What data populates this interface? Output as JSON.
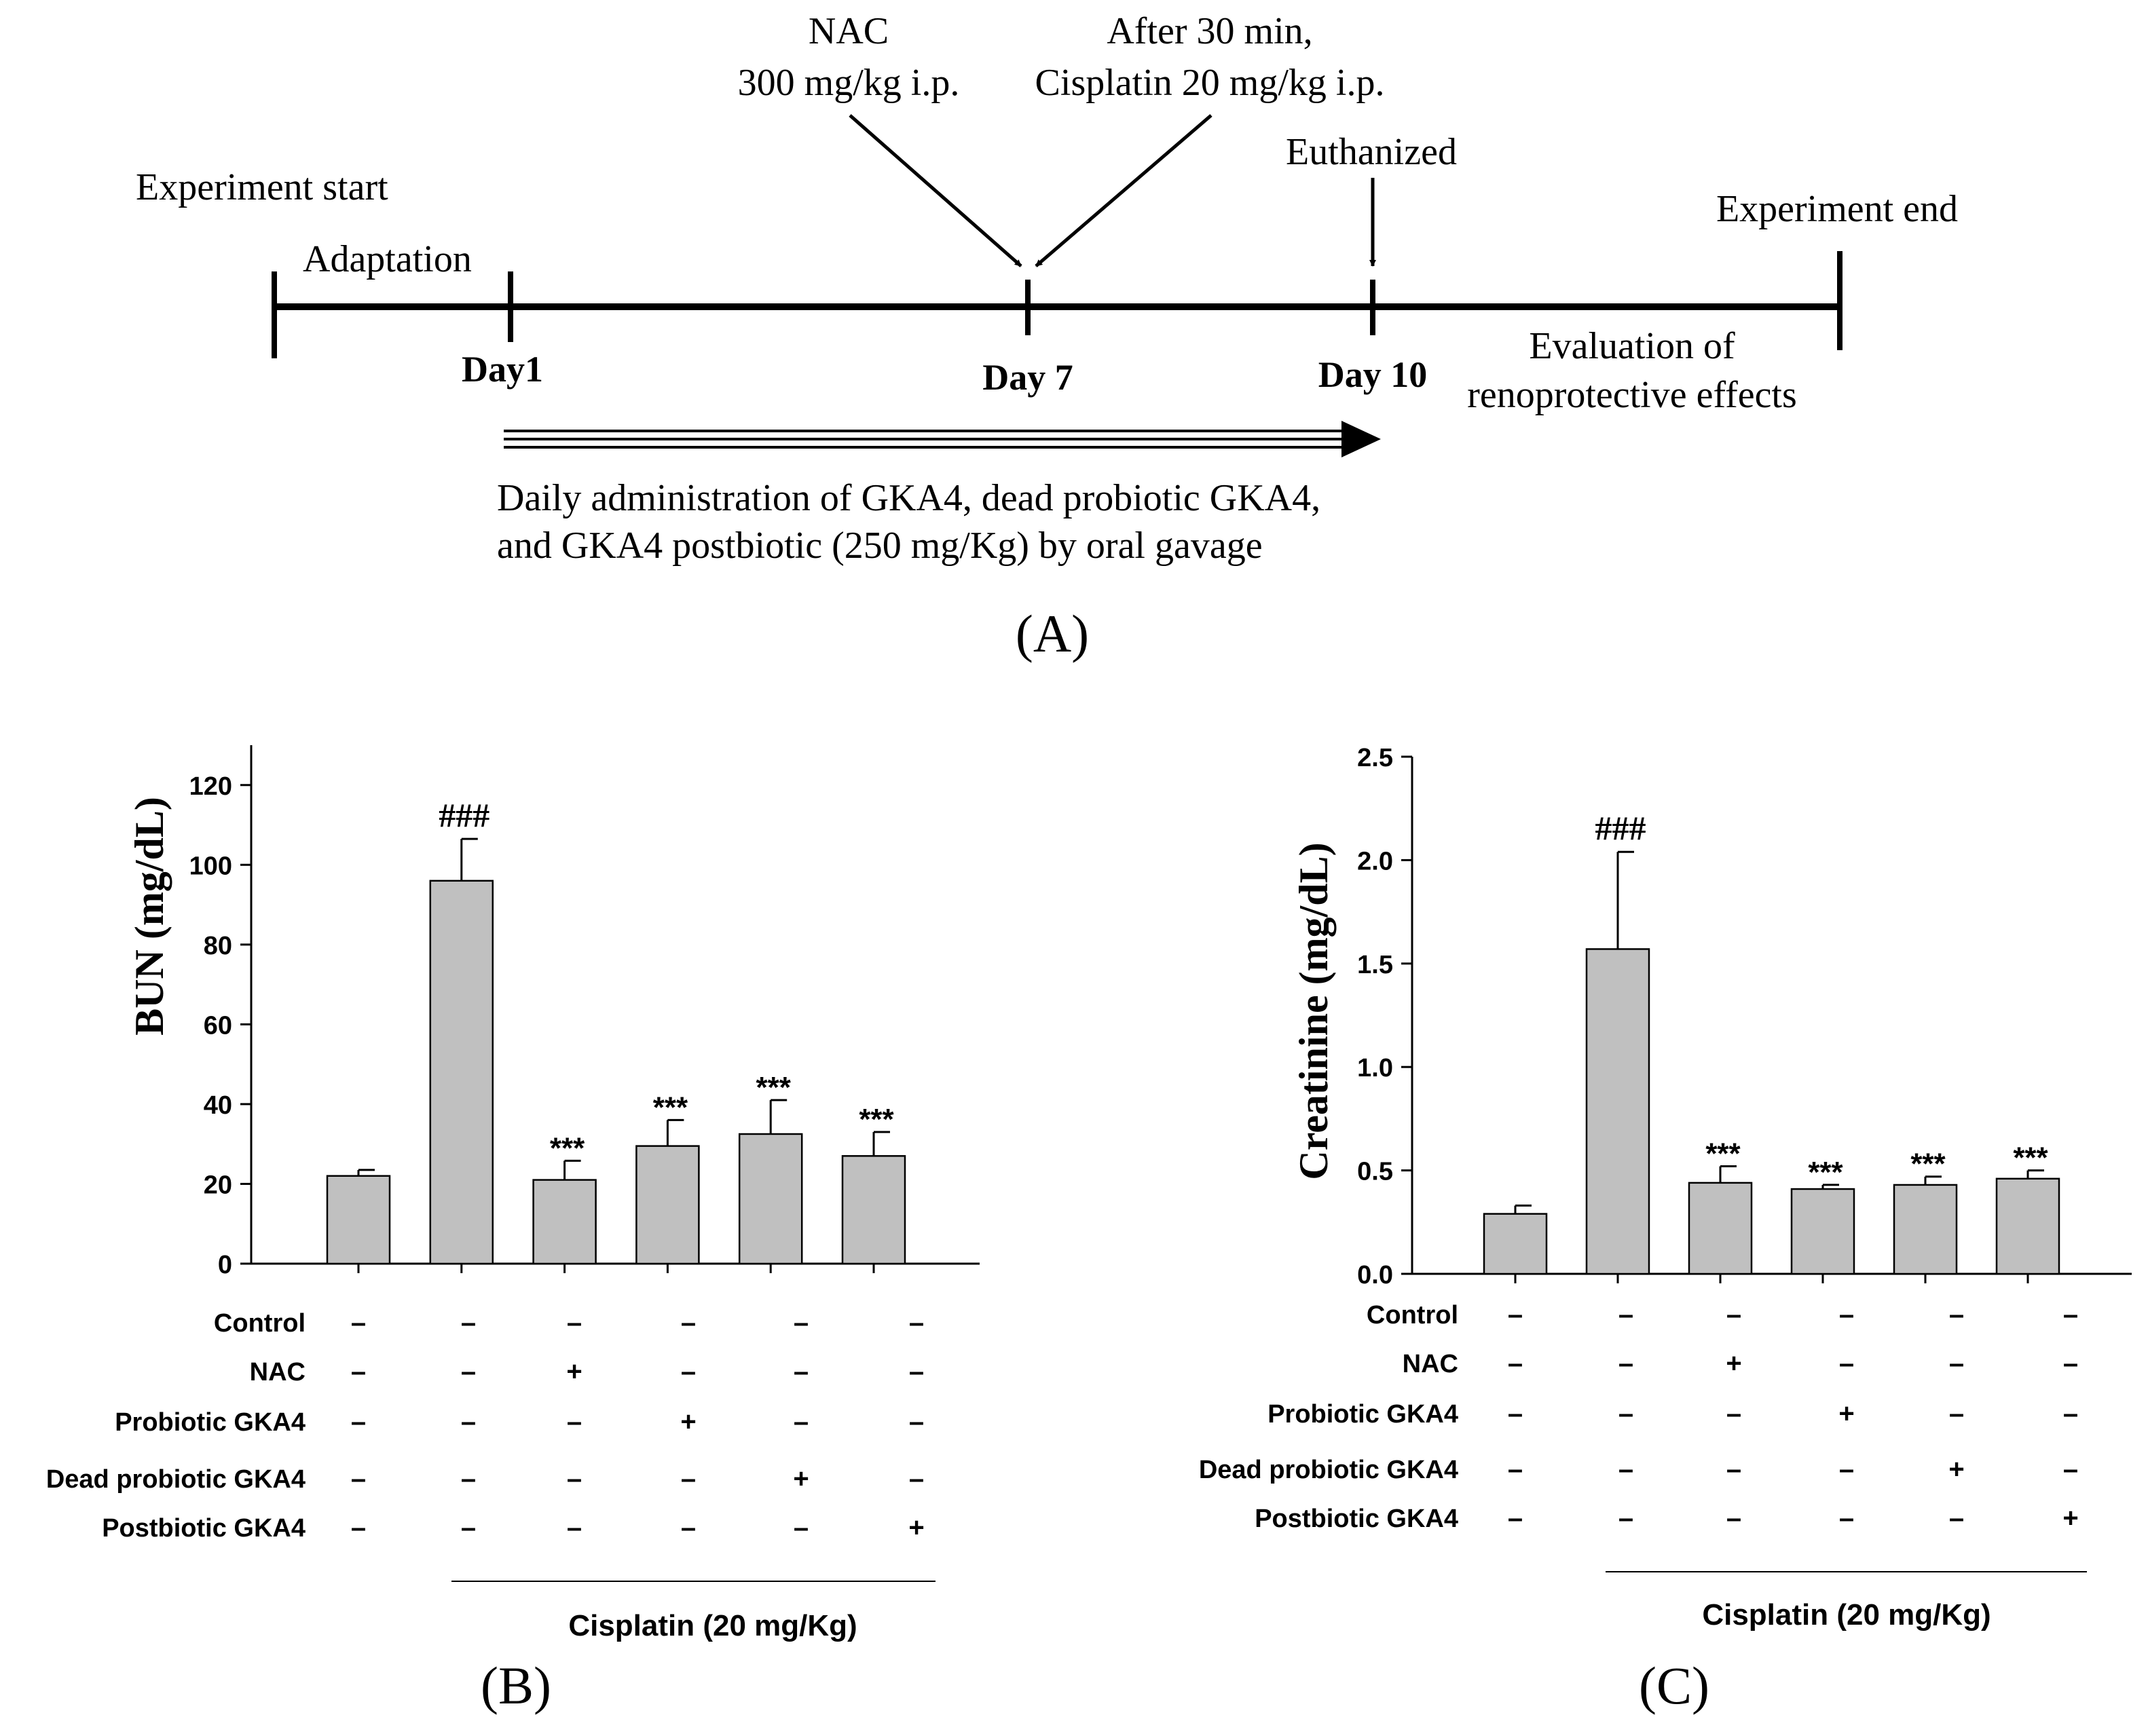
{
  "colors": {
    "ink": "#000000",
    "bar_fill": "#c0c0c0",
    "background": "#ffffff"
  },
  "timeline": {
    "experiment_start": "Experiment start",
    "adaptation": "Adaptation",
    "day1": "Day1",
    "day7": "Day 7",
    "day10": "Day 10",
    "nac_line1": "NAC",
    "nac_line2": "300 mg/kg i.p.",
    "cis_line1": "After 30 min,",
    "cis_line2": "Cisplatin 20 mg/kg i.p.",
    "euthanized": "Euthanized",
    "experiment_end": "Experiment end",
    "evaluation_line1": "Evaluation of",
    "evaluation_line2": "renoprotective effects",
    "daily_line1": "Daily administration of GKA4, dead probiotic GKA4,",
    "daily_line2": "and GKA4 postbiotic (250 mg/Kg) by oral gavage",
    "panel_label": "(A)"
  },
  "chart_data": [
    {
      "type": "bar",
      "panel_label": "(B)",
      "ylabel": "BUN (mg/dL)",
      "ylim": [
        0,
        130
      ],
      "yticks": [
        0,
        20,
        40,
        60,
        80,
        100,
        120
      ],
      "ytick_labels": [
        "0",
        "20",
        "40",
        "60",
        "80",
        "100",
        "120"
      ],
      "values": [
        22,
        96,
        21,
        29.5,
        32.5,
        27
      ],
      "errors": [
        1.5,
        10.5,
        4.8,
        6.5,
        8.5,
        6
      ],
      "annotations": [
        "",
        "###",
        "***",
        "***",
        "***",
        "***"
      ],
      "treatments": [
        {
          "label": "Control",
          "marks": [
            "–",
            "–",
            "–",
            "–",
            "–",
            "–"
          ]
        },
        {
          "label": "NAC",
          "marks": [
            "–",
            "–",
            "+",
            "–",
            "–",
            "–"
          ]
        },
        {
          "label": "Probiotic GKA4",
          "marks": [
            "–",
            "–",
            "–",
            "+",
            "–",
            "–"
          ]
        },
        {
          "label": "Dead probiotic GKA4",
          "marks": [
            "–",
            "–",
            "–",
            "–",
            "+",
            "–"
          ]
        },
        {
          "label": "Postbiotic GKA4",
          "marks": [
            "–",
            "–",
            "–",
            "–",
            "–",
            "+"
          ]
        }
      ],
      "group_label": "Cisplatin (20 mg/Kg)"
    },
    {
      "type": "bar",
      "panel_label": "(C)",
      "ylabel": "Creatinine (mg/dL)",
      "ylim": [
        0,
        2.5
      ],
      "yticks": [
        0,
        0.5,
        1.0,
        1.5,
        2.0,
        2.5
      ],
      "ytick_labels": [
        "0.0",
        "0.5",
        "1.0",
        "1.5",
        "2.0",
        "2.5"
      ],
      "values": [
        0.29,
        1.57,
        0.44,
        0.41,
        0.43,
        0.46
      ],
      "errors": [
        0.04,
        0.47,
        0.08,
        0.02,
        0.04,
        0.04
      ],
      "annotations": [
        "",
        "###",
        "***",
        "***",
        "***",
        "***"
      ],
      "treatments": [
        {
          "label": "Control",
          "marks": [
            "–",
            "–",
            "–",
            "–",
            "–",
            "–"
          ]
        },
        {
          "label": "NAC",
          "marks": [
            "–",
            "–",
            "+",
            "–",
            "–",
            "–"
          ]
        },
        {
          "label": "Probiotic GKA4",
          "marks": [
            "–",
            "–",
            "–",
            "+",
            "–",
            "–"
          ]
        },
        {
          "label": "Dead probiotic GKA4",
          "marks": [
            "–",
            "–",
            "–",
            "–",
            "+",
            "–"
          ]
        },
        {
          "label": "Postbiotic GKA4",
          "marks": [
            "–",
            "–",
            "–",
            "–",
            "–",
            "+"
          ]
        }
      ],
      "group_label": "Cisplatin (20 mg/Kg)"
    }
  ]
}
